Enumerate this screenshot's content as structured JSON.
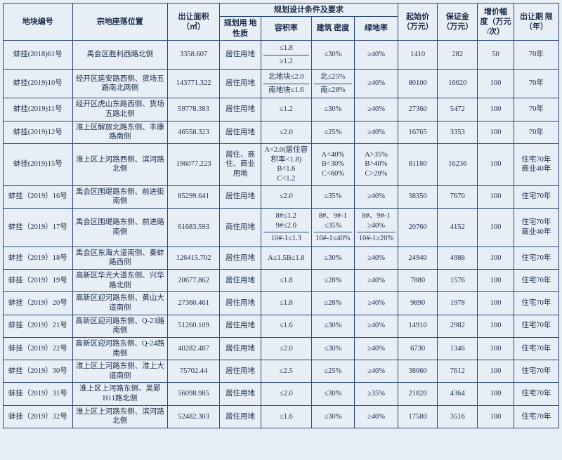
{
  "headers": {
    "id": "地块编号",
    "location": "宗地座落位置",
    "area": "出让面积\n（㎡）",
    "plangroup": "规划设计条件及要求",
    "use": "规划用\n地性质",
    "far": "容积率",
    "density": "建筑\n密度",
    "green": "绿地率",
    "start": "起始价\n（万元）",
    "deposit": "保证金\n（万元）",
    "increment": "增价幅\n度（万元\n/次）",
    "term": "出让期\n限（年）"
  },
  "rows": [
    {
      "id": "蚌挂(2018)61号",
      "location": "禹会区胜利西路北侧",
      "area": "3358.607",
      "use": "居住用地",
      "far": [
        "≤1.8",
        "≥1.2"
      ],
      "density": [
        "≤30%"
      ],
      "green": [
        "≥40%"
      ],
      "start": "1410",
      "deposit": "282",
      "increment": "50",
      "term": "70年"
    },
    {
      "id": "蚌挂(2019)10号",
      "location": "经开区延安路西侧、货场五路南北两侧",
      "area": "143771.322",
      "use": "居住用地",
      "far": [
        "北地块≤2.0",
        "南地块≤1.6"
      ],
      "density": [
        "北≤25%",
        "南≤28%"
      ],
      "green": [
        "≥40%"
      ],
      "start": "80100",
      "deposit": "16020",
      "increment": "100",
      "term": "70年"
    },
    {
      "id": "蚌挂(2019)11号",
      "location": "经开区虎山东路西侧、货场五路北侧",
      "area": "59778.383",
      "use": "居住用地",
      "far": [
        "≤1.2"
      ],
      "density": [
        "≤30%"
      ],
      "green": [
        "≥40%"
      ],
      "start": "27360",
      "deposit": "5472",
      "increment": "100",
      "term": "70年"
    },
    {
      "id": "蚌挂(2019)12号",
      "location": "淮上区解放北路东侧、丰康路南侧",
      "area": "46558.323",
      "use": "居住用地",
      "far": [
        "≤2.0"
      ],
      "density": [
        "≤25%"
      ],
      "green": [
        "≥40%"
      ],
      "start": "16765",
      "deposit": "3353",
      "increment": "100",
      "term": "70年"
    },
    {
      "id": "蚌挂(2019)15号",
      "location": "淮上区上河路西侧、滨河路北侧",
      "area": "196077.223",
      "use": "居住、商住、商业用地",
      "far": [
        "A<2.0(居住容积率<1.8)\nB<1.6\nC<1.2"
      ],
      "density": [
        "A<40%\nB<30%\nC<60%"
      ],
      "green": [
        "A>35%\nB>40%\nC>20%"
      ],
      "start": "81180",
      "deposit": "16236",
      "increment": "100",
      "term": "住宅70年\n商业40年"
    },
    {
      "id": "蚌挂（2019）16号",
      "location": "禹会区围堤路东侧、前进街南侧",
      "area": "85299.641",
      "use": "居住用地",
      "far": [
        "≤2.0"
      ],
      "density": [
        "≤35%"
      ],
      "green": [
        "≥40%"
      ],
      "start": "38350",
      "deposit": "7670",
      "increment": "100",
      "term": "住宅70年"
    },
    {
      "id": "蚌挂（2019）17号",
      "location": "禹会区围堤路东侧、前进路南侧",
      "area": "61683.593",
      "use": "商住用地",
      "far": [
        "8#≤1.2\n9#≤2.0",
        "10#-1≤1.3"
      ],
      "density": [
        "8#、9#-1\n≤35%",
        "10#-1≤40%"
      ],
      "green": [
        "8#、9#-1\n≥40%",
        "10#-1≥20%"
      ],
      "start": "20760",
      "deposit": "4152",
      "increment": "100",
      "term": "住宅70年\n商业40年"
    },
    {
      "id": "蚌挂（2019）18号",
      "location": "禹会区东海大道南侧、秦蚌路西侧",
      "area": "126415.702",
      "use": "居住用地",
      "far": [
        "A≤1.5B≤1.8"
      ],
      "density": [
        "≤30%"
      ],
      "green": [
        "≥40%"
      ],
      "start": "24940",
      "deposit": "4988",
      "increment": "100",
      "term": "住宅70年"
    },
    {
      "id": "蚌挂（2019）19号",
      "location": "高新区华光大道东侧、兴华路北侧",
      "area": "20677.862",
      "use": "居住用地",
      "far": [
        "≤1.8"
      ],
      "density": [
        "≤28%"
      ],
      "green": [
        "≥40%"
      ],
      "start": "7880",
      "deposit": "1576",
      "increment": "100",
      "term": "住宅70年"
    },
    {
      "id": "蚌挂（2019）20号",
      "location": "高新区迎河路东侧、黄山大道南侧",
      "area": "27360.461",
      "use": "居住用地",
      "far": [
        "≤1.8"
      ],
      "density": [
        "≤28%"
      ],
      "green": [
        "≥40%"
      ],
      "start": "9890",
      "deposit": "1978",
      "increment": "100",
      "term": "住宅70年"
    },
    {
      "id": "蚌挂（2019）21号",
      "location": "高新区迎河路东侧、Q-23路南侧",
      "area": "51260.109",
      "use": "居住用地",
      "far": [
        "≤1.6"
      ],
      "density": [
        "≤30%"
      ],
      "green": [
        "≥40%"
      ],
      "start": "14910",
      "deposit": "2982",
      "increment": "100",
      "term": "住宅70年"
    },
    {
      "id": "蚌挂（2019）22号",
      "location": "高新区迎河路东侧、Q-24路南侧",
      "area": "40282.487",
      "use": "居住用地",
      "far": [
        "≤2.0"
      ],
      "density": [
        "≤30%"
      ],
      "green": [
        "≥40%"
      ],
      "start": "6730",
      "deposit": "1346",
      "increment": "100",
      "term": "住宅70年"
    },
    {
      "id": "蚌挂（2019）30号",
      "location": "淮上区上河路东侧、淮上大道南侧",
      "area": "75702.44",
      "use": "居住用地",
      "far": [
        "≤2.5"
      ],
      "density": [
        "≤25%"
      ],
      "green": [
        "≥40%"
      ],
      "start": "38060",
      "deposit": "7612",
      "increment": "100",
      "term": "住宅70年"
    },
    {
      "id": "蚌挂（2019）31号",
      "location": "淮上区上河路东侧、吴郢H11路北侧",
      "area": "56098.985",
      "use": "居住用地",
      "far": [
        "≤2.0"
      ],
      "density": [
        "≤30%"
      ],
      "green": [
        "≥35%"
      ],
      "start": "21820",
      "deposit": "4364",
      "increment": "100",
      "term": "住宅70年"
    },
    {
      "id": "蚌挂（2019）32号",
      "location": "淮上区上河路东侧、滨河路北侧",
      "area": "52482.303",
      "use": "居住用地",
      "far": [
        "≤1.6"
      ],
      "density": [
        "≤30%"
      ],
      "green": [
        "≥40%"
      ],
      "start": "17580",
      "deposit": "3516",
      "increment": "100",
      "term": "住宅70年"
    }
  ]
}
